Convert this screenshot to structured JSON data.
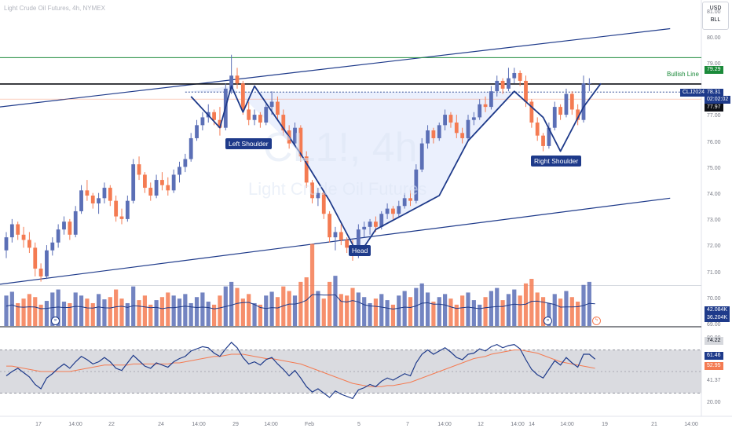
{
  "header": {
    "title": "Light Crude Oil Futures, 4h, NYMEX"
  },
  "watermark": {
    "symbol": "CL1!, 4h",
    "name": "Light Crude Oil Futures"
  },
  "units_box": {
    "currency": "USD",
    "unit": "BLL"
  },
  "annotations": {
    "left_shoulder": "Left Shoulder",
    "head": "Head",
    "right_shoulder": "Right Shoulder",
    "bullish_line": "Bullish Line"
  },
  "colors": {
    "up": "#5b6fb6",
    "down": "#f47b52",
    "accent": "#1e3a8a",
    "bullish": "#1b8a3a",
    "rsi": "#1e3a8a",
    "rsi_ma": "#f47b52"
  },
  "price_tags": {
    "bullish": "79.29",
    "contract": "CLJ2024",
    "last": "78.31",
    "countdown": "02:02:02",
    "level": "77.97",
    "vol1": "42.084K",
    "vol2": "36.204K",
    "rsi_upper": "74.22",
    "rsi_value": "61.46",
    "rsi_ma": "52.95",
    "rsi_lower": "41.37"
  },
  "y_axis_labels": [
    {
      "v": 81,
      "t": "81.00"
    },
    {
      "v": 80,
      "t": "80.00"
    },
    {
      "v": 79,
      "t": "79.00"
    },
    {
      "v": 77,
      "t": "77.00"
    },
    {
      "v": 76,
      "t": "76.00"
    },
    {
      "v": 75,
      "t": "75.00"
    },
    {
      "v": 74,
      "t": "74.00"
    },
    {
      "v": 73,
      "t": "73.00"
    },
    {
      "v": 72,
      "t": "72.00"
    },
    {
      "v": 71,
      "t": "71.00"
    },
    {
      "v": 70,
      "t": "70.00"
    },
    {
      "v": 69,
      "t": "69.00"
    }
  ],
  "rsi_axis_labels": [
    {
      "v": 80,
      "t": "80.00"
    },
    {
      "v": 20,
      "t": "20.00"
    }
  ],
  "x_axis_labels": [
    "17",
    "14:00",
    "22",
    "24",
    "14:00",
    "29",
    "14:00",
    "Feb",
    "5",
    "7",
    "14:00",
    "12",
    "14:00",
    "14",
    "14:00",
    "19",
    "21",
    "14:00"
  ],
  "chart_data": {
    "type": "candlestick",
    "symbol": "CLJ2024",
    "timeframe": "4h",
    "price_range": [
      69,
      81.5
    ],
    "candles": [
      [
        71.9,
        72.6,
        71.6,
        72.4
      ],
      [
        72.4,
        73.1,
        72.2,
        72.9
      ],
      [
        72.9,
        73.0,
        72.3,
        72.5
      ],
      [
        72.5,
        72.8,
        72.0,
        72.3
      ],
      [
        72.3,
        72.6,
        71.8,
        72.0
      ],
      [
        72.0,
        72.2,
        70.9,
        71.2
      ],
      [
        71.2,
        71.4,
        70.7,
        70.9
      ],
      [
        70.9,
        72.1,
        70.8,
        71.9
      ],
      [
        71.9,
        72.4,
        71.7,
        72.2
      ],
      [
        72.2,
        72.9,
        72.0,
        72.7
      ],
      [
        72.7,
        73.2,
        72.5,
        73.0
      ],
      [
        73.0,
        73.1,
        72.3,
        72.5
      ],
      [
        72.5,
        73.6,
        72.4,
        73.4
      ],
      [
        73.4,
        74.4,
        73.3,
        74.2
      ],
      [
        74.2,
        74.6,
        73.8,
        74.0
      ],
      [
        74.0,
        74.1,
        73.5,
        73.7
      ],
      [
        73.7,
        74.1,
        73.3,
        73.9
      ],
      [
        73.9,
        74.5,
        73.7,
        74.3
      ],
      [
        74.3,
        74.4,
        73.6,
        73.8
      ],
      [
        73.8,
        74.0,
        73.0,
        73.2
      ],
      [
        73.2,
        73.5,
        72.9,
        73.1
      ],
      [
        73.1,
        74.0,
        73.0,
        73.8
      ],
      [
        73.8,
        75.4,
        73.7,
        75.2
      ],
      [
        75.2,
        75.5,
        74.6,
        74.8
      ],
      [
        74.8,
        74.9,
        74.1,
        74.3
      ],
      [
        74.3,
        74.5,
        73.8,
        74.0
      ],
      [
        74.0,
        74.8,
        73.9,
        74.6
      ],
      [
        74.6,
        74.9,
        74.2,
        74.4
      ],
      [
        74.4,
        74.7,
        74.0,
        74.2
      ],
      [
        74.2,
        75.0,
        74.1,
        74.8
      ],
      [
        74.8,
        75.3,
        74.5,
        75.1
      ],
      [
        75.1,
        75.6,
        74.9,
        75.4
      ],
      [
        75.4,
        76.4,
        75.3,
        76.2
      ],
      [
        76.2,
        76.9,
        76.1,
        76.7
      ],
      [
        76.7,
        77.2,
        76.5,
        77.0
      ],
      [
        77.0,
        77.5,
        76.8,
        77.2
      ],
      [
        77.2,
        77.3,
        76.7,
        76.9
      ],
      [
        76.9,
        77.4,
        76.3,
        76.6
      ],
      [
        76.6,
        78.3,
        76.5,
        78.1
      ],
      [
        78.1,
        79.4,
        77.9,
        78.6
      ],
      [
        78.6,
        78.9,
        78.1,
        78.3
      ],
      [
        78.3,
        78.4,
        77.1,
        77.3
      ],
      [
        77.3,
        77.6,
        76.7,
        76.9
      ],
      [
        76.9,
        77.3,
        76.7,
        77.1
      ],
      [
        77.1,
        77.2,
        76.6,
        76.8
      ],
      [
        76.8,
        77.5,
        76.7,
        77.4
      ],
      [
        77.4,
        78.0,
        77.1,
        77.6
      ],
      [
        77.6,
        77.8,
        76.9,
        77.1
      ],
      [
        77.1,
        77.3,
        76.3,
        76.5
      ],
      [
        76.5,
        76.7,
        75.8,
        76.0
      ],
      [
        76.0,
        76.8,
        75.9,
        76.6
      ],
      [
        76.6,
        76.7,
        75.3,
        75.5
      ],
      [
        75.5,
        75.7,
        74.3,
        74.5
      ],
      [
        74.5,
        74.6,
        73.7,
        73.9
      ],
      [
        73.9,
        74.3,
        73.6,
        74.1
      ],
      [
        74.1,
        74.2,
        73.1,
        73.3
      ],
      [
        73.3,
        73.4,
        72.2,
        72.4
      ],
      [
        72.4,
        72.8,
        71.9,
        72.6
      ],
      [
        72.6,
        72.9,
        72.1,
        72.3
      ],
      [
        72.3,
        72.4,
        71.8,
        72.0
      ],
      [
        72.0,
        72.3,
        71.5,
        71.7
      ],
      [
        71.7,
        72.9,
        71.6,
        72.7
      ],
      [
        72.7,
        73.0,
        72.4,
        72.8
      ],
      [
        72.8,
        73.1,
        72.5,
        73.0
      ],
      [
        73.0,
        73.2,
        72.6,
        72.8
      ],
      [
        72.8,
        73.4,
        72.7,
        73.3
      ],
      [
        73.3,
        73.7,
        73.1,
        73.5
      ],
      [
        73.5,
        73.6,
        73.1,
        73.3
      ],
      [
        73.3,
        73.8,
        73.2,
        73.6
      ],
      [
        73.6,
        74.1,
        73.5,
        73.9
      ],
      [
        73.9,
        74.2,
        73.6,
        73.8
      ],
      [
        73.8,
        75.2,
        73.7,
        75.0
      ],
      [
        75.0,
        76.2,
        74.9,
        76.0
      ],
      [
        76.0,
        76.7,
        75.8,
        76.5
      ],
      [
        76.5,
        76.6,
        76.0,
        76.2
      ],
      [
        76.2,
        76.8,
        76.1,
        76.7
      ],
      [
        76.7,
        77.3,
        76.5,
        77.1
      ],
      [
        77.1,
        77.2,
        76.6,
        76.8
      ],
      [
        76.8,
        77.1,
        76.2,
        76.4
      ],
      [
        76.4,
        76.6,
        76.0,
        76.2
      ],
      [
        76.2,
        77.1,
        76.1,
        76.9
      ],
      [
        76.9,
        77.2,
        76.7,
        77.0
      ],
      [
        77.0,
        77.7,
        76.9,
        77.5
      ],
      [
        77.5,
        77.8,
        77.2,
        77.4
      ],
      [
        77.4,
        78.2,
        77.3,
        78.0
      ],
      [
        78.0,
        78.6,
        77.8,
        78.4
      ],
      [
        78.4,
        78.5,
        77.9,
        78.1
      ],
      [
        78.1,
        78.9,
        78.0,
        78.5
      ],
      [
        78.5,
        78.9,
        78.3,
        78.7
      ],
      [
        78.7,
        78.8,
        78.2,
        78.4
      ],
      [
        78.4,
        78.6,
        77.4,
        77.6
      ],
      [
        77.6,
        77.7,
        76.6,
        76.8
      ],
      [
        76.8,
        77.0,
        76.1,
        76.3
      ],
      [
        76.3,
        76.4,
        75.7,
        75.9
      ],
      [
        75.9,
        76.8,
        75.8,
        76.6
      ],
      [
        76.6,
        77.6,
        76.5,
        77.4
      ],
      [
        77.4,
        77.5,
        76.9,
        77.1
      ],
      [
        77.1,
        78.1,
        77.0,
        77.9
      ],
      [
        77.9,
        78.0,
        77.1,
        77.3
      ],
      [
        77.3,
        77.5,
        76.7,
        76.9
      ],
      [
        76.9,
        78.6,
        76.8,
        78.3
      ],
      [
        78.3,
        78.5,
        78.0,
        78.31
      ]
    ],
    "volume": [
      40,
      45,
      30,
      36,
      42,
      38,
      28,
      33,
      44,
      48,
      32,
      30,
      44,
      40,
      36,
      30,
      42,
      35,
      38,
      48,
      36,
      30,
      52,
      34,
      40,
      28,
      34,
      38,
      44,
      40,
      36,
      42,
      30,
      38,
      44,
      32,
      28,
      40,
      52,
      58,
      50,
      36,
      42,
      30,
      28,
      40,
      45,
      38,
      52,
      46,
      40,
      58,
      64,
      108,
      46,
      36,
      58,
      66,
      42,
      40,
      50,
      44,
      38,
      30,
      36,
      42,
      34,
      28,
      40,
      46,
      38,
      50,
      56,
      44,
      32,
      38,
      42,
      36,
      28,
      40,
      44,
      34,
      28,
      38,
      46,
      50,
      34,
      42,
      48,
      40,
      56,
      62,
      44,
      38,
      30,
      42,
      36,
      46,
      38,
      32,
      54,
      58,
      42
    ],
    "rsi": [
      46,
      50,
      53,
      49,
      45,
      38,
      34,
      44,
      48,
      53,
      57,
      53,
      59,
      64,
      61,
      57,
      59,
      63,
      59,
      53,
      51,
      58,
      65,
      60,
      55,
      53,
      58,
      56,
      54,
      59,
      62,
      64,
      69,
      71,
      73,
      72,
      67,
      64,
      71,
      77,
      72,
      63,
      57,
      59,
      56,
      61,
      63,
      57,
      52,
      46,
      51,
      44,
      36,
      31,
      34,
      30,
      26,
      32,
      29,
      27,
      25,
      33,
      35,
      38,
      36,
      41,
      44,
      42,
      45,
      48,
      46,
      58,
      66,
      70,
      66,
      69,
      72,
      68,
      63,
      61,
      66,
      67,
      71,
      69,
      73,
      75,
      72,
      74,
      75,
      71,
      61,
      52,
      47,
      44,
      52,
      60,
      56,
      63,
      58,
      54,
      66,
      66,
      61.46
    ],
    "rsi_ma": [
      55,
      55,
      54,
      53,
      52,
      51,
      50,
      50,
      50,
      50,
      50,
      50,
      51,
      52,
      53,
      54,
      55,
      56,
      56,
      56,
      56,
      56,
      57,
      57,
      57,
      57,
      57,
      57,
      57,
      58,
      58,
      59,
      60,
      61,
      62,
      63,
      64,
      64,
      65,
      66,
      66,
      66,
      65,
      64,
      63,
      62,
      62,
      61,
      60,
      59,
      58,
      57,
      55,
      53,
      51,
      49,
      47,
      45,
      43,
      41,
      39,
      38,
      37,
      36,
      36,
      36,
      37,
      37,
      38,
      39,
      40,
      42,
      44,
      46,
      48,
      50,
      52,
      54,
      56,
      58,
      60,
      62,
      63,
      64,
      66,
      67,
      68,
      69,
      70,
      70,
      69,
      68,
      67,
      65,
      63,
      61,
      59,
      58,
      57,
      56,
      55,
      54,
      52.95
    ],
    "rsi_bands": {
      "upper": 70,
      "middle": 50,
      "lower": 30
    },
    "lines": {
      "bullish_line": 79.29,
      "neckline": 77.97,
      "last_price": 78.31
    },
    "channel": {
      "upper": {
        "from": [
          0,
          77.4
        ],
        "to": [
          115,
          80.4
        ]
      },
      "lower": {
        "from": [
          0,
          70.6
        ],
        "to": [
          115,
          73.9
        ]
      }
    },
    "pattern": {
      "neckline_from_index": 31,
      "neckline_to_index": 90,
      "zigzag": [
        [
          32,
          77.8
        ],
        [
          37,
          76.6
        ],
        [
          39,
          78.2
        ],
        [
          41,
          77.2
        ],
        [
          43,
          78.2
        ],
        [
          51,
          75.6
        ],
        [
          56,
          73.8
        ],
        [
          61,
          71.7
        ],
        [
          64,
          72.7
        ],
        [
          75,
          74.0
        ],
        [
          80,
          76.1
        ],
        [
          88,
          78.0
        ],
        [
          93,
          77.0
        ],
        [
          96,
          75.7
        ],
        [
          100,
          77.4
        ],
        [
          103,
          78.3
        ]
      ],
      "shape_points": [
        [
          39,
          78.2
        ],
        [
          51,
          75.6
        ],
        [
          56,
          73.8
        ],
        [
          61,
          71.7
        ],
        [
          64,
          72.7
        ],
        [
          75,
          74.0
        ],
        [
          80,
          76.1
        ],
        [
          88,
          78.0
        ]
      ]
    }
  }
}
